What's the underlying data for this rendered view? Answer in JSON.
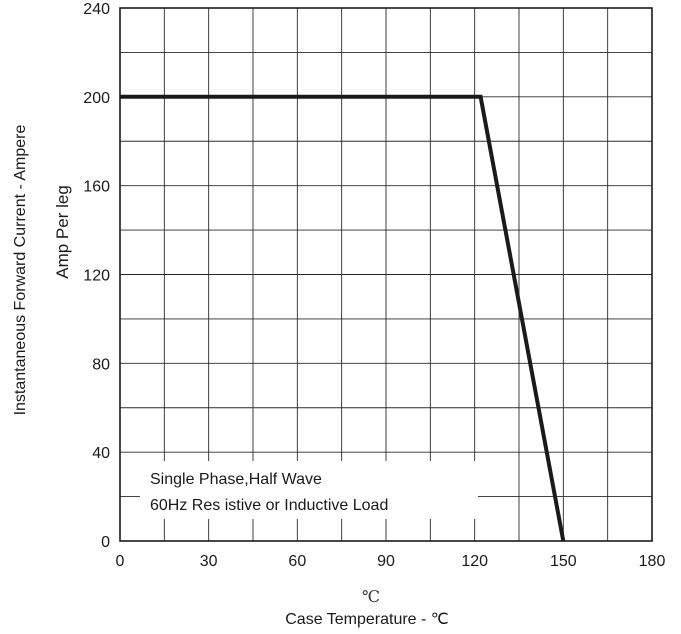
{
  "chart_data": {
    "type": "line",
    "xlim": [
      0,
      180
    ],
    "ylim": [
      0,
      240
    ],
    "x_ticks": [
      0,
      30,
      60,
      90,
      120,
      150,
      180
    ],
    "y_ticks": [
      0,
      40,
      80,
      120,
      160,
      200,
      240
    ],
    "x_minor_step": 15,
    "y_minor_step": 20,
    "grid": true,
    "xlabel": "Case Temperature - ℃",
    "xunit": "℃",
    "ylabel_line1": "Instantaneous Forward Current - Ampere",
    "ylabel_line2": "Amp   Per leg",
    "annotation": {
      "line1": "Single  Phase,Half  Wave",
      "line2": "60Hz  Res  istive or Inductive Load"
    },
    "series": [
      {
        "points": [
          [
            0,
            200
          ],
          [
            122,
            200
          ],
          [
            150,
            0
          ]
        ]
      }
    ]
  }
}
